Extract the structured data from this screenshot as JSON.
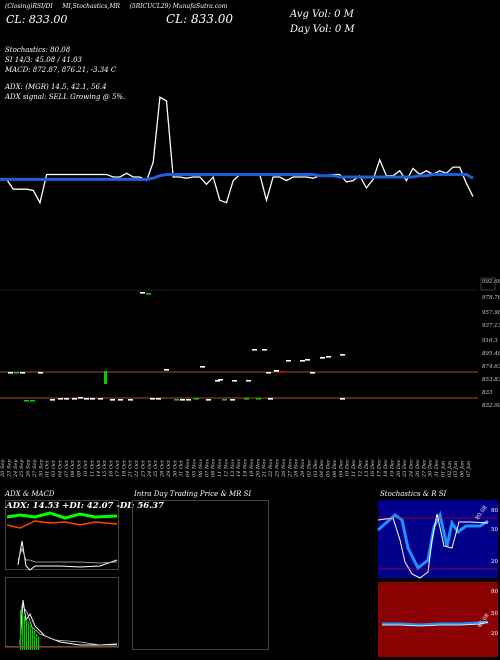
{
  "header": {
    "ticker_line": "(5RICUCL29) MunafaSutra.com",
    "price_chart_label": "(Closing)RSI/DI",
    "macd_label": "MI,Stochastics,MR",
    "price_mini": "CL: 833.00",
    "close": "CL: 833.00",
    "avg_vol": "Avg Vol: 0   M",
    "day_vol": "Day Vol: 0   M"
  },
  "indicators": {
    "stochastics": "Stochastics: 80.08",
    "si": "SI 14/3: 45.08 / 41.03",
    "macd": "MACD: 872.87, 876.21, -3.34  C",
    "adx": "ADX:                  (MGR) 14.5, 42.1, 56.4",
    "signal": "ADX  signal: SELL Growing @ 5%."
  },
  "chart_data": [
    {
      "type": "line",
      "title": "",
      "series": [
        {
          "name": "",
          "color": "#ffffff",
          "values": [
            69,
            69,
            61,
            61,
            61,
            60,
            50,
            73,
            73,
            73,
            73,
            73,
            73,
            73,
            73,
            73,
            73,
            71,
            71,
            74,
            71,
            71,
            68,
            83,
            136,
            133,
            71,
            71,
            70,
            71,
            71,
            65,
            71,
            52,
            50,
            68,
            73,
            73,
            73,
            73,
            52,
            71,
            71,
            68,
            71,
            71,
            71,
            70,
            72,
            72,
            73,
            73,
            67,
            68,
            72,
            62,
            69,
            85,
            72,
            72,
            76,
            68,
            78,
            73,
            76,
            73,
            76,
            74,
            79,
            79,
            66,
            55
          ]
        },
        {
          "name": "",
          "color": "#1e5fd8",
          "values": [
            69,
            69,
            69,
            69,
            69,
            69,
            69,
            69,
            69,
            69,
            69,
            69,
            69,
            69,
            69,
            69,
            69,
            69,
            69,
            69,
            69,
            69,
            69,
            70,
            72,
            73,
            73,
            73,
            73,
            73,
            73,
            73,
            73,
            73,
            73,
            73,
            73,
            73,
            73,
            73,
            73,
            73,
            73,
            73,
            73,
            73,
            73,
            73,
            72,
            72,
            72,
            71,
            71,
            71,
            71,
            71,
            71,
            71,
            71,
            71,
            71,
            71,
            71,
            72,
            72,
            73,
            73,
            73,
            73,
            73,
            73,
            70
          ]
        }
      ]
    },
    {
      "type": "bar",
      "title": "",
      "y_tick_labels": [
        "992.68",
        "978.76",
        "957.98",
        "937.13",
        "916.3",
        "895.48",
        "874.63",
        "853.83",
        "833",
        "832.99"
      ],
      "x_labels": [
        "20 Sep",
        "23 Sep",
        "24 Sep",
        "25 Sep",
        "26 Sep",
        "27 Sep",
        "30 Sep",
        "01 Oct",
        "03 Oct",
        "04 Oct",
        "07 Oct",
        "08 Oct",
        "09 Oct",
        "10 Oct",
        "11 Oct",
        "14 Oct",
        "15 Oct",
        "16 Oct",
        "17 Oct",
        "18 Oct",
        "21 Oct",
        "22 Oct",
        "23 Oct",
        "24 Oct",
        "25 Oct",
        "28 Oct",
        "29 Oct",
        "30 Oct",
        "31 Oct",
        "04 Nov",
        "05 Nov",
        "06 Nov",
        "07 Nov",
        "08 Nov",
        "11 Nov",
        "12 Nov",
        "13 Nov",
        "14 Nov",
        "18 Nov",
        "19 Nov",
        "20 Nov",
        "21 Nov",
        "22 Nov",
        "25 Nov",
        "26 Nov",
        "27 Nov",
        "28 Nov",
        "29 Nov",
        "02 Dec",
        "03 Dec",
        "04 Dec",
        "05 Dec",
        "06 Dec",
        "09 Dec",
        "10 Dec",
        "11 Dec",
        "12 Dec",
        "13 Dec",
        "16 Dec",
        "17 Dec",
        "18 Dec",
        "19 Dec",
        "20 Dec",
        "23 Dec",
        "24 Dec",
        "26 Dec",
        "27 Dec",
        "30 Dec",
        "31 Dec",
        "01 Jan",
        "02 Jan",
        "03 Jan",
        "06 Jan",
        "07 Jan"
      ]
    }
  ],
  "panels": {
    "adx_macd_title": "ADX  & MACD",
    "adx_readout": "ADX: 14.53  +DI: 42.07  -DI: 56.37",
    "intraday_title": "Intra  Day Trading Price  & MR                    SI",
    "stoch_title": "Stochastics & R                  SI",
    "stoch_ticks": [
      "80",
      "50",
      "20"
    ],
    "rsi_ticks": [
      "80",
      "50",
      "20"
    ],
    "stoch_value": "80.08",
    "rsi_value": "45.08"
  },
  "colors": {
    "background": "#000000",
    "price_line": "#ffffff",
    "average_line": "#1e5fd8",
    "up": "#00cc00",
    "down": "#ffffff",
    "rsi_panel_bg": "#8b0000",
    "stoch_panel_bg": "#00008b",
    "divider": "#a0522d"
  }
}
